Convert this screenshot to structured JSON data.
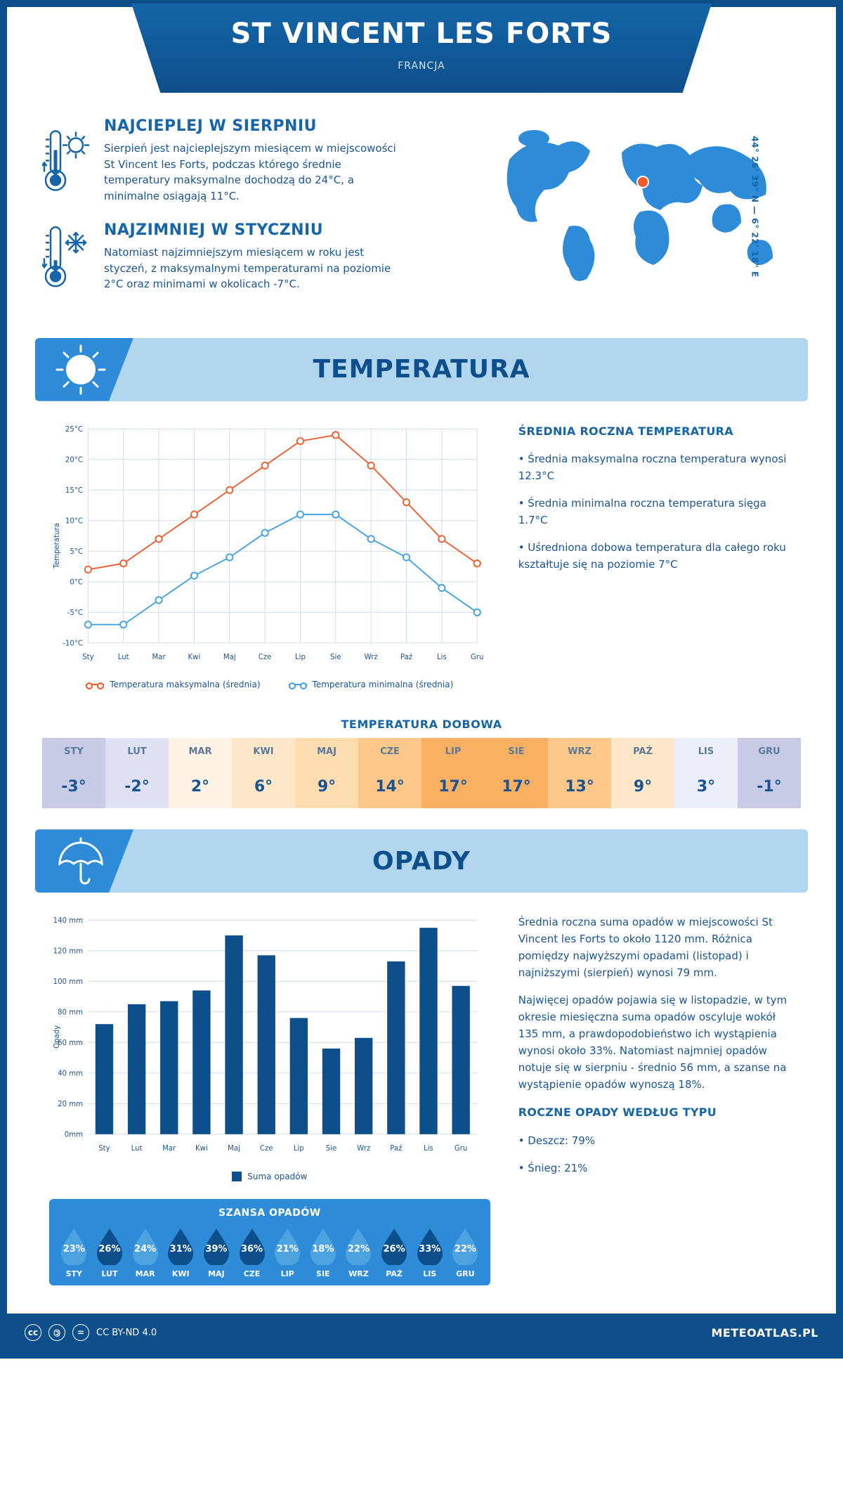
{
  "header": {
    "title": "ST VINCENT LES FORTS",
    "country": "FRANCJA"
  },
  "coords": "44° 26' 39\" N — 6° 22' 18\" E",
  "facts": {
    "hot": {
      "title": "NAJCIEPLEJ W SIERPNIU",
      "text": "Sierpień jest najcieplejszym miesiącem w miejscowości St Vincent les Forts, podczas którego średnie temperatury maksymalne dochodzą do 24°C, a minimalne osiągają 11°C."
    },
    "cold": {
      "title": "NAJZIMNIEJ W STYCZNIU",
      "text": "Natomiast najzimniejszym miesiącem w roku jest styczeń, z maksymalnymi temperaturami na poziomie 2°C oraz minimami w okolicach -7°C."
    }
  },
  "months": [
    "Sty",
    "Lut",
    "Mar",
    "Kwi",
    "Maj",
    "Cze",
    "Lip",
    "Sie",
    "Wrz",
    "Paź",
    "Lis",
    "Gru"
  ],
  "months_upper": [
    "STY",
    "LUT",
    "MAR",
    "KWI",
    "MAJ",
    "CZE",
    "LIP",
    "SIE",
    "WRZ",
    "PAŹ",
    "LIS",
    "GRU"
  ],
  "temp_section": {
    "title": "TEMPERATURA",
    "chart": {
      "type": "line",
      "ylabel": "Temperatura",
      "y_ticks": [
        -10,
        -5,
        0,
        5,
        10,
        15,
        20,
        25
      ],
      "y_tick_labels": [
        "-10°C",
        "-5°C",
        "0°C",
        "5°C",
        "10°C",
        "15°C",
        "20°C",
        "25°C"
      ],
      "ylim": [
        -10,
        25
      ],
      "series": {
        "max": {
          "label": "Temperatura maksymalna (średnia)",
          "color": "#f15a2b",
          "values": [
            2,
            3,
            7,
            11,
            15,
            19,
            23,
            24,
            19,
            13,
            7,
            3
          ]
        },
        "min": {
          "label": "Temperatura minimalna (średnia)",
          "color": "#3ea0e0",
          "values": [
            -7,
            -7,
            -3,
            1,
            4,
            8,
            11,
            11,
            7,
            4,
            -1,
            -5
          ]
        }
      },
      "grid_color": "#cfd9e8",
      "background": "#ffffff",
      "line_width": 2,
      "marker": "circle",
      "marker_size": 5
    },
    "side": {
      "title": "ŚREDNIA ROCZNA TEMPERATURA",
      "bullets": [
        "Średnia maksymalna roczna temperatura wynosi 12.3°C",
        "Średnia minimalna roczna temperatura sięga 1.7°C",
        "Uśredniona dobowa temperatura dla całego roku kształtuje się na poziomie 7°C"
      ]
    },
    "daily_title": "TEMPERATURA DOBOWA",
    "daily_values": [
      "-3°",
      "-2°",
      "2°",
      "6°",
      "9°",
      "14°",
      "17°",
      "17°",
      "13°",
      "9°",
      "3°",
      "-1°"
    ],
    "daily_colors": [
      "#c8cbe6",
      "#dfe1f2",
      "#fdf2e4",
      "#fde7c9",
      "#fddcb0",
      "#fbc88a",
      "#f9b062",
      "#f9b062",
      "#fbc88a",
      "#fde7c9",
      "#eceefa",
      "#c8cbe6"
    ]
  },
  "precip_section": {
    "title": "OPADY",
    "chart": {
      "type": "bar",
      "ylabel": "Opady",
      "y_ticks": [
        0,
        20,
        40,
        60,
        80,
        100,
        120,
        140
      ],
      "y_tick_labels": [
        "0mm",
        "20 mm",
        "40 mm",
        "60 mm",
        "80 mm",
        "100 mm",
        "120 mm",
        "140 mm"
      ],
      "ylim": [
        0,
        140
      ],
      "values": [
        72,
        85,
        87,
        94,
        130,
        117,
        76,
        56,
        63,
        113,
        135,
        97
      ],
      "bar_color": "#0d4f8b",
      "bar_width": 0.55,
      "grid_color": "#cfd9e8",
      "legend_label": "Suma opadów"
    },
    "side": {
      "p1": "Średnia roczna suma opadów w miejscowości St Vincent les Forts to około 1120 mm. Różnica pomiędzy najwyższymi opadami (listopad) i najniższymi (sierpień) wynosi 79 mm.",
      "p2": "Najwięcej opadów pojawia się w listopadzie, w tym okresie miesięczna suma opadów oscyluje wokół 135 mm, a prawdopodobieństwo ich wystąpienia wynosi około 33%. Natomiast najmniej opadów notuje się w sierpniu - średnio 56 mm, a szanse na wystąpienie opadów wynoszą 18%.",
      "type_title": "ROCZNE OPADY WEDŁUG TYPU",
      "types": [
        "Deszcz: 79%",
        "Śnieg: 21%"
      ]
    },
    "chance": {
      "title": "SZANSA OPADÓW",
      "values": [
        23,
        26,
        24,
        31,
        39,
        36,
        21,
        18,
        22,
        26,
        33,
        22
      ],
      "bg_colors": [
        "#4da3e0",
        "#0d4f8b",
        "#4da3e0",
        "#0d4f8b",
        "#0d4f8b",
        "#0d4f8b",
        "#4da3e0",
        "#4da3e0",
        "#4da3e0",
        "#0d4f8b",
        "#0d4f8b",
        "#4da3e0"
      ]
    }
  },
  "footer": {
    "license": "CC BY-ND 4.0",
    "site": "METEOATLAS.PL"
  },
  "palette": {
    "primary": "#0d4f8b",
    "accent": "#2d8bd8",
    "pale": "#b3d6ef",
    "text": "#1a5490"
  }
}
